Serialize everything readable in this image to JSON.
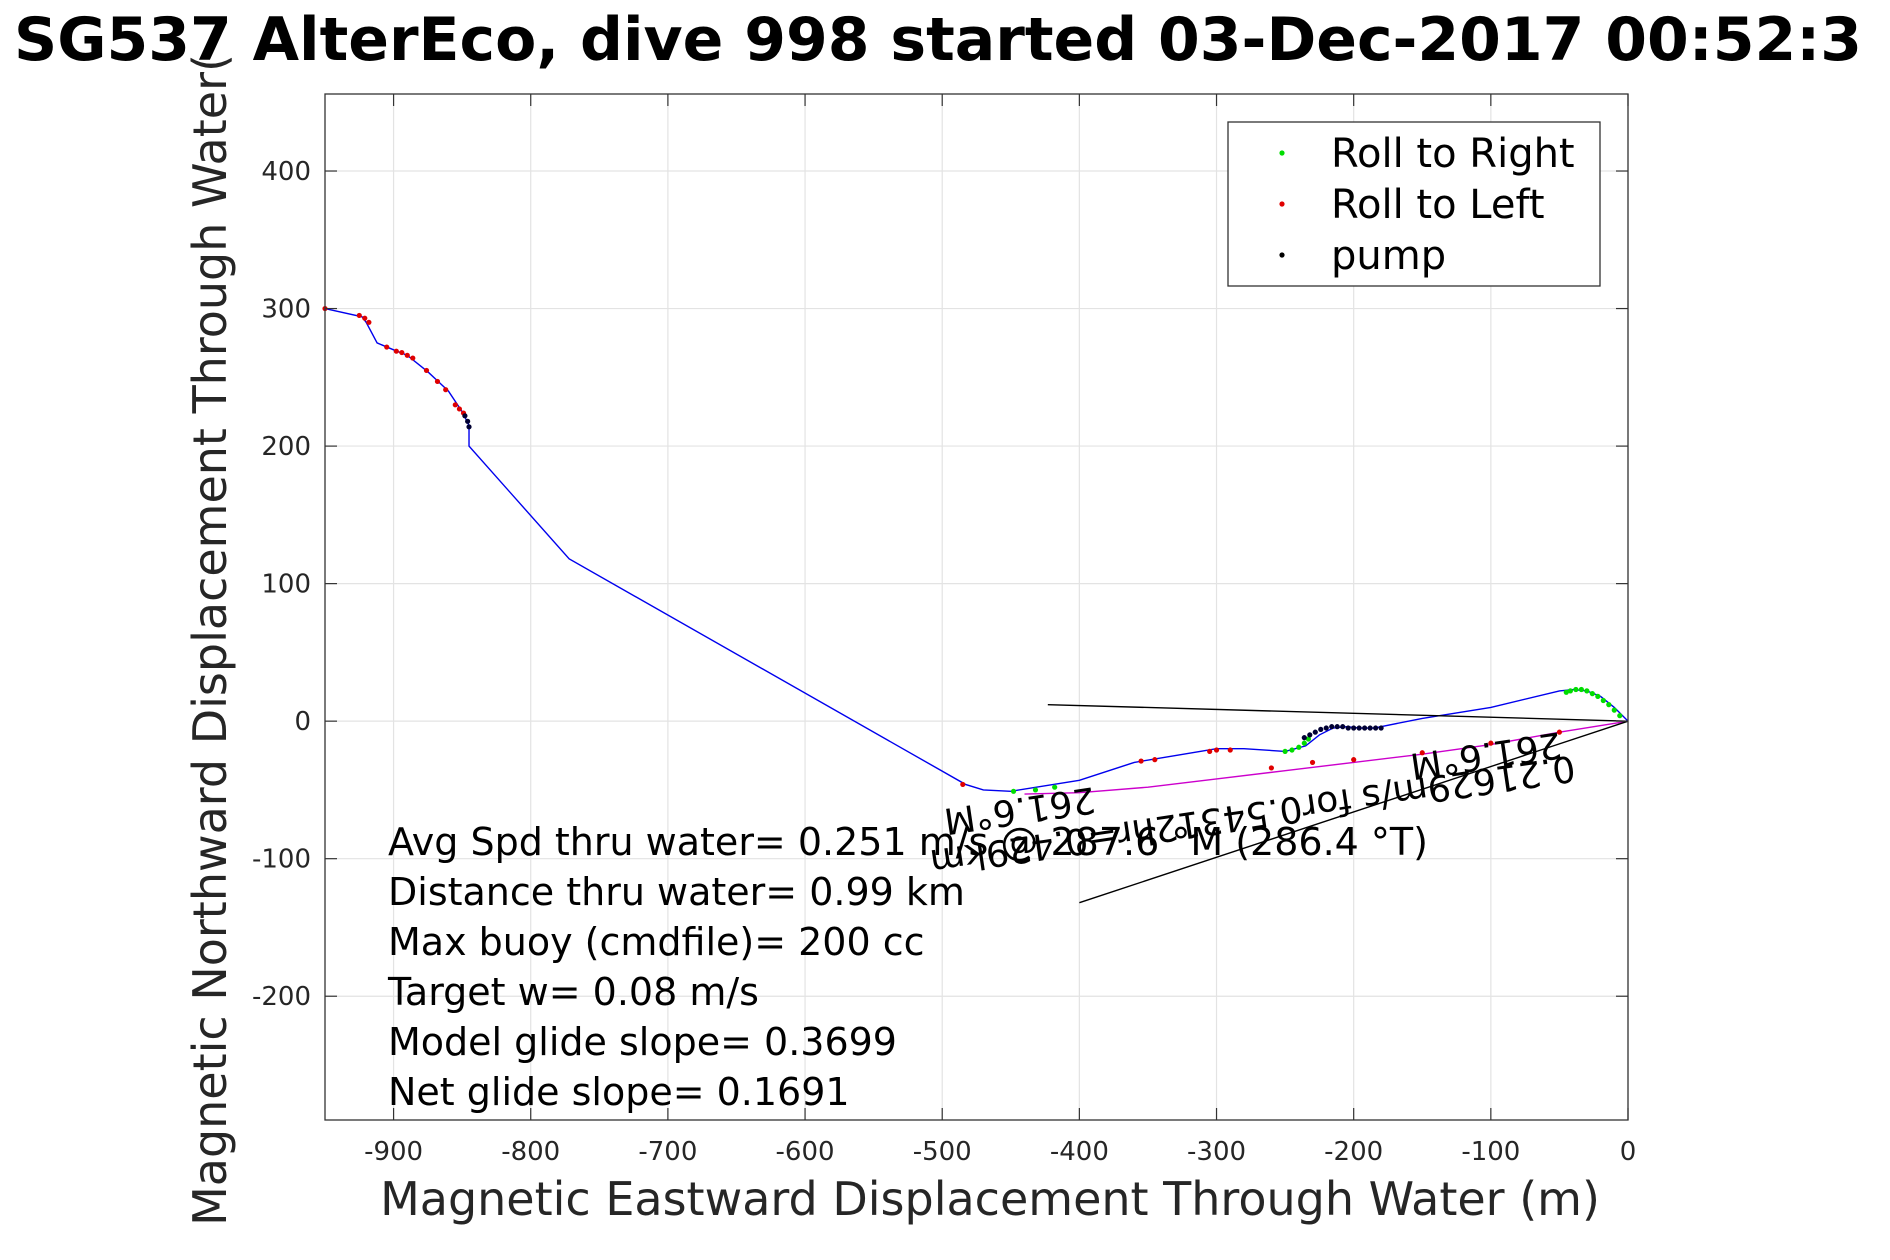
{
  "chart_data": {
    "type": "scatter",
    "title": "SG537 AlterEco, dive 998 started 03-Dec-2017 00:52:3",
    "xlabel": "Magnetic Eastward Displacement Through Water (m)",
    "ylabel": "Magnetic Northward Displacement Through Water(",
    "xlim": [
      -950,
      0
    ],
    "ylim": [
      -290,
      456
    ],
    "xticks": [
      -900,
      -800,
      -700,
      -600,
      -500,
      -400,
      -300,
      -200,
      -100,
      0
    ],
    "yticks": [
      -200,
      -100,
      0,
      100,
      200,
      300,
      400
    ],
    "grid": true,
    "legend": {
      "placement": "top-right",
      "entries": [
        {
          "label": "Roll to Right",
          "color": "#00dd00"
        },
        {
          "label": "Roll to Left",
          "color": "#e00000"
        },
        {
          "label": "pump",
          "color": "#000000"
        }
      ]
    },
    "colors": {
      "track": "#0000ee",
      "track_secondary": "#cc00cc",
      "roll_right": "#00dd00",
      "roll_left": "#e00000",
      "pump": "#000033",
      "current": "#000000"
    },
    "series": [
      {
        "name": "",
        "role": "track",
        "x": [
          -950,
          -923,
          -920,
          -912,
          -900,
          -890,
          -875,
          -860,
          -850,
          -845,
          -845,
          -772,
          -483,
          -470,
          -450,
          -400,
          -360,
          -330,
          -300,
          -280,
          -250,
          -235,
          -225,
          -215,
          -205,
          -195,
          -185,
          -150,
          -100,
          -50,
          -40,
          -30,
          -20,
          -10,
          0
        ],
        "y": [
          300,
          294,
          290,
          275,
          270,
          266,
          254,
          240,
          225,
          215,
          200,
          118,
          -46,
          -50,
          -51,
          -43,
          -30,
          -25,
          -20,
          -20,
          -22,
          -18,
          -10,
          -5,
          -4,
          -5,
          -5,
          2,
          10,
          22,
          23,
          22,
          18,
          10,
          0
        ]
      },
      {
        "name": "",
        "role": "track_secondary",
        "x": [
          -440,
          -400,
          -350,
          -300,
          -250,
          -200,
          -150,
          -100,
          -50,
          0
        ],
        "y": [
          -53,
          -52,
          -48,
          -42,
          -36,
          -30,
          -24,
          -17,
          -8,
          0
        ]
      },
      {
        "name": "Roll to Right",
        "role": "roll_right",
        "x": [
          -448,
          -432,
          -418,
          -250,
          -245,
          -240,
          -236,
          -233,
          -45,
          -42,
          -38,
          -34,
          -30,
          -26,
          -22,
          -18,
          -14,
          -10,
          -6
        ],
        "y": [
          -51,
          -50,
          -48,
          -22,
          -21,
          -19,
          -16,
          -13,
          21,
          22,
          23,
          23,
          22,
          20,
          18,
          15,
          12,
          8,
          4
        ]
      },
      {
        "name": "Roll to Left",
        "role": "roll_left",
        "x": [
          -950,
          -925,
          -921,
          -918,
          -905,
          -898,
          -894,
          -890,
          -886,
          -876,
          -868,
          -862,
          -855,
          -852,
          -849,
          -485,
          -355,
          -345,
          -305,
          -300,
          -290,
          -260,
          -230,
          -200,
          -150,
          -100,
          -50
        ],
        "y": [
          300,
          295,
          293,
          290,
          272,
          269,
          268,
          266,
          264,
          255,
          247,
          241,
          230,
          227,
          224,
          -46,
          -29,
          -28,
          -22,
          -21,
          -21,
          -34,
          -30,
          -28,
          -23,
          -16,
          -8
        ]
      },
      {
        "name": "pump",
        "role": "pump",
        "x": [
          -848,
          -846,
          -845,
          -236,
          -232,
          -228,
          -224,
          -220,
          -216,
          -212,
          -208,
          -204,
          -200,
          -196,
          -192,
          -188,
          -184,
          -180
        ],
        "y": [
          222,
          218,
          214,
          -12,
          -10,
          -8,
          -6,
          -5,
          -4,
          -4,
          -4,
          -5,
          -5,
          -5,
          -5,
          -5,
          -5,
          -5
        ]
      }
    ],
    "current_lines": [
      {
        "from": [
          0,
          0
        ],
        "to": [
          -423,
          12
        ]
      },
      {
        "from": [
          0,
          0
        ],
        "to": [
          -400,
          -132
        ]
      }
    ],
    "annotations": {
      "stats": [
        "Avg Spd thru water= 0.251 m/s @ 287.6 °M (286.4 °T)",
        "Distance thru water=  0.99 km",
        "Max buoy (cmdfile)= 200 cc",
        "Target w= 0.08 m/s",
        "Model glide slope= 0.3699",
        "Net glide slope= 0.1691"
      ],
      "current_labels": [
        {
          "text": "0.21629m/s for0.54312hr=0.429km",
          "x": -40,
          "y": -25
        },
        {
          "text": "261.6°M",
          "x": -50,
          "y": -8
        },
        {
          "text": "261.6°M",
          "x": -390,
          "y": -48
        }
      ]
    }
  }
}
